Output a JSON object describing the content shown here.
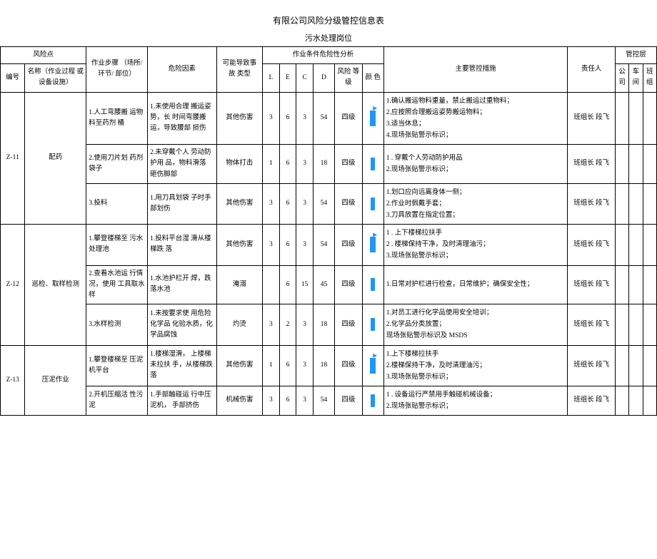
{
  "title": "有限公司风险分级管控信息表",
  "subtitle": "污水处理岗位",
  "headers": {
    "risk_point": "风险点",
    "serial": "编号",
    "name": "名称（作业过程 或\n设备设施）",
    "step": "作业步骤\n（场所/环节/\n部位）",
    "hazard_factor": "危险因素",
    "accident_type": "可能导致事 故\n类型",
    "analysis": "作业条件危险性分析",
    "L": "L",
    "E": "E",
    "C": "C",
    "D": "D",
    "risk_level": "风险 等\n级",
    "color": "颜 色",
    "main_measures": "主要管控措施",
    "responsible": "责任人",
    "control_level": "管控层",
    "company": "公\n司",
    "workshop": "车\n间",
    "team": "班\n组"
  },
  "rows": [
    {
      "id": "Z-11",
      "name": "配药",
      "sub": [
        {
          "step": "1.人工弯腰搬 运物料至药剂 桶",
          "hazard": "1.未使用合理  搬运姿势，长 时间弯腰搬  运，导致腰部 损伤",
          "type": "其他伤害",
          "L": "3",
          "E": "6",
          "C": "3",
          "D": "54",
          "level": "四级",
          "flag": true,
          "measures": "1.确认搬运物料重量，禁止搬运过重物料；\n2.应按照合理搬运姿势搬运物料；\n3.适当休息；\n4.现场张贴警示标识；",
          "resp": "班组长 段飞"
        },
        {
          "step": "2.使用刀片划 药剂袋子",
          "hazard": "2.未穿戴个人  劳动防护用  品，物料滑落 砸伤脚部",
          "type": "物体打击",
          "L": "1",
          "E": "6",
          "C": "3",
          "D": "18",
          "level": "四级",
          "flag": false,
          "measures": "1 . 穿戴个人劳动防护用品\n2.现场张贴警示标识；",
          "resp": "班组长 段飞"
        },
        {
          "step": "3.投料",
          "hazard": "1.用刀具划袋 子时手部划伤",
          "type": "其他伤害",
          "L": "3",
          "E": "6",
          "C": "3",
          "D": "54",
          "level": "四级",
          "flag": false,
          "measures": "1.划口应向远离身体一侧；\n2.作业时佩戴手套；\n3.刀具放置在指定位置；",
          "resp": "班组长 段飞"
        }
      ]
    },
    {
      "id": "Z-12",
      "name": "巡检、取样检测",
      "sub": [
        {
          "step": "1.攀登楼梯至 污水处理池",
          "hazard": "1.投料平台湿 滑从楼梯跌 落",
          "type": "其他伤害",
          "L": "3",
          "E": "6",
          "C": "3",
          "D": "54",
          "level": "四级",
          "flag": true,
          "measures": "1 . 上下楼梯拉扶手\n2 . 楼梯保持干净，及时清理油污；\n3.现场张贴警示标识；",
          "resp": "班组长 段飞"
        },
        {
          "step": "2.查看水池运 行情况，使用 工具取水样",
          "hazard": "1.水池护栏开 焊，跌落水池",
          "type": "淹溺",
          "L": "",
          "E": "6",
          "C": "15",
          "D": "45",
          "level": "四级",
          "flag": false,
          "measures": "1.日常对护栏进行检查，日常维护；确保安全性；",
          "resp": "班组长 段飞"
        },
        {
          "step": "3.水样检测",
          "hazard": "1.未按要求使  用危险化学品 化验水质，化 学品腐蚀",
          "type": "灼烫",
          "L": "3",
          "E": "2",
          "C": "3",
          "D": "18",
          "level": "四级",
          "flag": false,
          "measures": "1.对员工进行化学品使用安全培训；\n2.化学品分类放置；\n现场张贴警示标识及 MSDS",
          "resp": "班组长 段飞"
        }
      ]
    },
    {
      "id": "Z-13",
      "name": "压泥作业",
      "sub": [
        {
          "step": "1.攀登楼梯至 压泥机平台",
          "hazard": "1.楼梯湿滑， 上楼梯未拉扶 手，从楼梯跌 落",
          "type": "其他伤害",
          "L": "1",
          "E": "6",
          "C": "3",
          "D": "18",
          "level": "四级",
          "flag": true,
          "measures": "1.上下楼梯拉扶手\n2.楼梯保持干净，及时清理油污；\n3.现场张贴警示标识；",
          "resp": "班组长 段飞"
        },
        {
          "step": "2.开机压缩活 性污泥",
          "hazard": "1.手部触碰运 行中压泥机， 手部挤伤",
          "type": "机械伤害",
          "L": "3",
          "E": "6",
          "C": "3",
          "D": "54",
          "level": "四级",
          "flag": false,
          "measures": "1 . 设备运行严禁用手触碰机械设备；\n2.现场张贴警示标识；",
          "resp": "班组长 段飞"
        }
      ]
    }
  ]
}
